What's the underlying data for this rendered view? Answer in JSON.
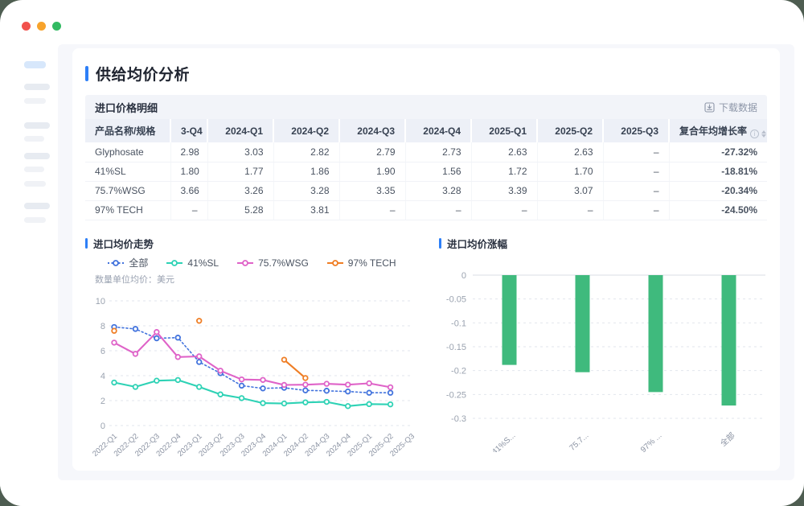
{
  "page": {
    "title": "供给均价分析",
    "accent_color": "#2d7ff7"
  },
  "table_section": {
    "title": "进口价格明细",
    "download_label": "下载数据",
    "columns": [
      "产品名称/规格",
      "3-Q4",
      "2024-Q1",
      "2024-Q2",
      "2024-Q3",
      "2024-Q4",
      "2025-Q1",
      "2025-Q2",
      "2025-Q3",
      "复合年均增长率"
    ],
    "rows": [
      {
        "name": "Glyphosate",
        "values": [
          "2.98",
          "3.03",
          "2.82",
          "2.79",
          "2.73",
          "2.63",
          "2.63",
          "–"
        ],
        "cagr": "-27.32%"
      },
      {
        "name": "41%SL",
        "values": [
          "1.80",
          "1.77",
          "1.86",
          "1.90",
          "1.56",
          "1.72",
          "1.70",
          "–"
        ],
        "cagr": "-18.81%"
      },
      {
        "name": "75.7%WSG",
        "values": [
          "3.66",
          "3.26",
          "3.28",
          "3.35",
          "3.28",
          "3.39",
          "3.07",
          "–"
        ],
        "cagr": "-20.34%"
      },
      {
        "name": "97% TECH",
        "values": [
          "–",
          "5.28",
          "3.81",
          "–",
          "–",
          "–",
          "–",
          "–"
        ],
        "cagr": "-24.50%"
      }
    ],
    "cagr_color": "#1db876"
  },
  "chart_data": [
    {
      "type": "line",
      "title": "进口均价走势",
      "subtitle": "数量单位均价：美元",
      "x": [
        "2022-Q1",
        "2022-Q2",
        "2022-Q3",
        "2022-Q4",
        "2023-Q1",
        "2023-Q2",
        "2023-Q3",
        "2023-Q4",
        "2024-Q1",
        "2024-Q2",
        "2024-Q3",
        "2024-Q4",
        "2025-Q1",
        "2025-Q2",
        "2025-Q3"
      ],
      "ylim": [
        0,
        10
      ],
      "yticks": [
        0,
        2,
        4,
        6,
        8,
        10
      ],
      "grid": true,
      "legend_position": "top",
      "series": [
        {
          "name": "全部",
          "color": "#4273dd",
          "style": "dotted",
          "values": [
            7.9,
            7.75,
            7.0,
            7.05,
            5.1,
            4.2,
            3.2,
            2.98,
            3.03,
            2.82,
            2.79,
            2.73,
            2.63,
            2.63,
            null
          ]
        },
        {
          "name": "41%SL",
          "color": "#2ed2b5",
          "style": "solid",
          "values": [
            3.45,
            3.1,
            3.6,
            3.65,
            3.1,
            2.5,
            2.2,
            1.8,
            1.77,
            1.86,
            1.9,
            1.56,
            1.72,
            1.7,
            null
          ]
        },
        {
          "name": "75.7%WSG",
          "color": "#df63c8",
          "style": "solid",
          "values": [
            6.65,
            5.75,
            7.5,
            5.5,
            5.55,
            4.4,
            3.7,
            3.66,
            3.26,
            3.28,
            3.35,
            3.28,
            3.39,
            3.07,
            null
          ]
        },
        {
          "name": "97% TECH",
          "color": "#ef7e25",
          "style": "solid",
          "values": [
            7.6,
            null,
            null,
            null,
            8.4,
            null,
            null,
            null,
            5.28,
            3.81,
            null,
            null,
            null,
            null,
            null
          ]
        }
      ]
    },
    {
      "type": "bar",
      "title": "进口均价涨幅",
      "categories": [
        "41%S...",
        "75.7...",
        "97% ...",
        "全部"
      ],
      "values": [
        -0.1881,
        -0.2034,
        -0.245,
        -0.2732
      ],
      "bar_color": "#3fba7d",
      "ylim": [
        -0.3,
        0
      ],
      "yticks": [
        0,
        -0.05,
        -0.1,
        -0.15,
        -0.2,
        -0.25,
        -0.3
      ],
      "grid": true
    }
  ]
}
